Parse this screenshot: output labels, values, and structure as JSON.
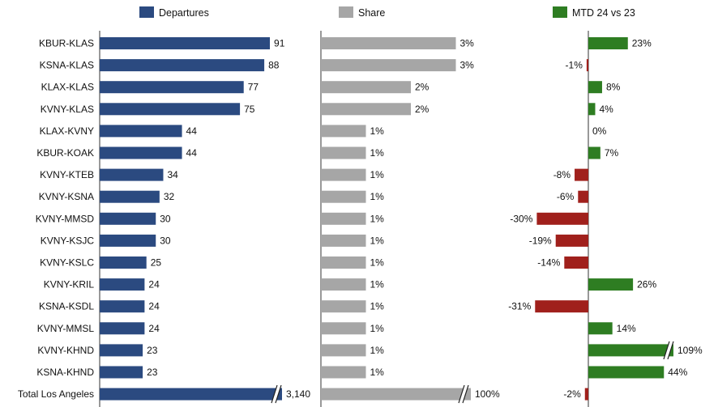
{
  "chart_data": {
    "type": "bar",
    "orientation": "horizontal",
    "categories": [
      "KBUR-KLAS",
      "KSNA-KLAS",
      "KLAX-KLAS",
      "KVNY-KLAS",
      "KLAX-KVNY",
      "KBUR-KOAK",
      "KVNY-KTEB",
      "KVNY-KSNA",
      "KVNY-MMSD",
      "KVNY-KSJC",
      "KVNY-KSLC",
      "KVNY-KRIL",
      "KSNA-KSDL",
      "KVNY-MMSL",
      "KVNY-KHND",
      "KSNA-KHND",
      "Total Los Angeles"
    ],
    "series": [
      {
        "name": "Departures",
        "color": "#2b4a80",
        "values": [
          91,
          88,
          77,
          75,
          44,
          44,
          34,
          32,
          30,
          30,
          25,
          24,
          24,
          24,
          23,
          23,
          3140
        ],
        "labels": [
          "91",
          "88",
          "77",
          "75",
          "44",
          "44",
          "34",
          "32",
          "30",
          "30",
          "25",
          "24",
          "24",
          "24",
          "23",
          "23",
          "3,140"
        ],
        "broken": [
          16
        ]
      },
      {
        "name": "Share",
        "color": "#a6a6a6",
        "values": [
          3,
          3,
          2,
          2,
          1,
          1,
          1,
          1,
          1,
          1,
          1,
          1,
          1,
          1,
          1,
          1,
          100
        ],
        "labels": [
          "3%",
          "3%",
          "2%",
          "2%",
          "1%",
          "1%",
          "1%",
          "1%",
          "1%",
          "1%",
          "1%",
          "1%",
          "1%",
          "1%",
          "1%",
          "1%",
          "100%"
        ],
        "broken": [
          16
        ]
      },
      {
        "name": "MTD 24 vs 23",
        "positive_color": "#2e7d22",
        "negative_color": "#a0201c",
        "values": [
          23,
          -1,
          8,
          4,
          0,
          7,
          -8,
          -6,
          -30,
          -19,
          -14,
          26,
          -31,
          14,
          109,
          44,
          -2
        ],
        "labels": [
          "23%",
          "-1%",
          "8%",
          "4%",
          "0%",
          "7%",
          "-8%",
          "-6%",
          "-30%",
          "-19%",
          "-14%",
          "26%",
          "-31%",
          "14%",
          "109%",
          "44%",
          "-2%"
        ],
        "broken": [
          14
        ]
      }
    ],
    "legend": "top"
  }
}
